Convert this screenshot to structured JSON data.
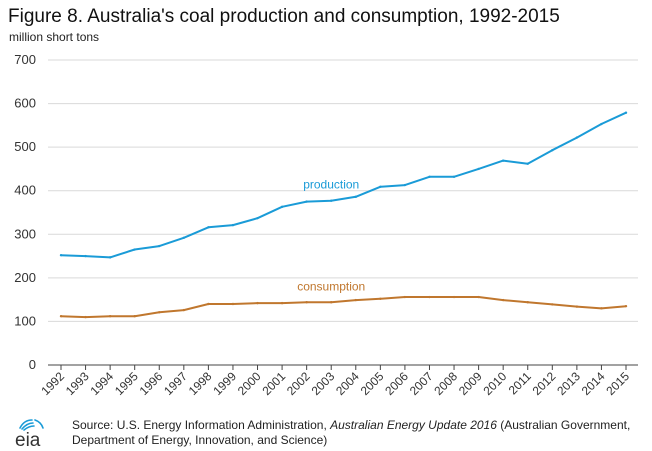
{
  "figure": {
    "title": "Figure 8. Australia's coal production and consumption, 1992-2015",
    "units": "million short tons"
  },
  "footer": {
    "logo_text": "eia",
    "source_prefix": "Source: U.S. Energy Information Administration, ",
    "source_italic": "Australian Energy Update 2016",
    "source_suffix": " (Australian Government, Department of Energy, Innovation, and Science)"
  },
  "colors": {
    "production": "#1a9bd7",
    "consumption": "#c0772e",
    "grid": "#d9d9d9",
    "axis": "#444444"
  },
  "chart_data": {
    "type": "line",
    "title": "Figure 8. Australia's coal production and consumption, 1992-2015",
    "ylabel": "million short tons",
    "xlabel": "",
    "ylim": [
      0,
      700
    ],
    "yticks": [
      0,
      100,
      200,
      300,
      400,
      500,
      600,
      700
    ],
    "grid": true,
    "categories": [
      "1992",
      "1993",
      "1994",
      "1995",
      "1996",
      "1997",
      "1998",
      "1999",
      "2000",
      "2001",
      "2002",
      "2003",
      "2004",
      "2005",
      "2006",
      "2007",
      "2008",
      "2009",
      "2010",
      "2011",
      "2012",
      "2013",
      "2014",
      "2015"
    ],
    "series": [
      {
        "name": "production",
        "label_at": 11,
        "values": [
          252,
          250,
          247,
          265,
          273,
          292,
          316,
          321,
          337,
          363,
          375,
          377,
          386,
          409,
          413,
          432,
          432,
          450,
          469,
          462,
          493,
          522,
          553,
          579
        ]
      },
      {
        "name": "consumption",
        "label_at": 11,
        "values": [
          112,
          110,
          112,
          112,
          121,
          126,
          140,
          140,
          142,
          142,
          144,
          144,
          149,
          152,
          156,
          156,
          156,
          156,
          149,
          144,
          139,
          134,
          130,
          135
        ]
      }
    ]
  }
}
